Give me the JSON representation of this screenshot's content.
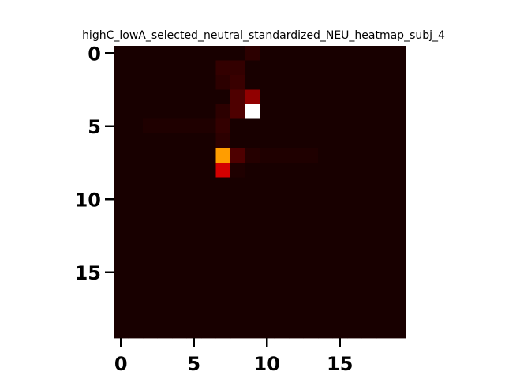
{
  "chart_data": {
    "type": "heatmap",
    "title": "highC_lowA_selected_neutral_standardized_NEU_heatmap_subj_4",
    "xlabel": "",
    "ylabel": "",
    "colormap": "hot",
    "rows": 20,
    "cols": 20,
    "x_ticks": [
      0,
      5,
      10,
      15
    ],
    "y_ticks": [
      0,
      5,
      10,
      15
    ],
    "x_tick_labels": [
      "0",
      "5",
      "10",
      "15"
    ],
    "y_tick_labels": [
      "0",
      "5",
      "10",
      "15"
    ],
    "background_value": 0.02,
    "highlight_cells": [
      {
        "row": 0,
        "col": 9,
        "value": 0.05
      },
      {
        "row": 1,
        "col": 7,
        "value": 0.06
      },
      {
        "row": 1,
        "col": 8,
        "value": 0.06
      },
      {
        "row": 2,
        "col": 7,
        "value": 0.05
      },
      {
        "row": 2,
        "col": 8,
        "value": 0.07
      },
      {
        "row": 3,
        "col": 8,
        "value": 0.1
      },
      {
        "row": 3,
        "col": 9,
        "value": 0.2
      },
      {
        "row": 4,
        "col": 7,
        "value": 0.05
      },
      {
        "row": 4,
        "col": 8,
        "value": 0.1
      },
      {
        "row": 4,
        "col": 9,
        "value": 1.0
      },
      {
        "row": 5,
        "col": 7,
        "value": 0.06
      },
      {
        "row": 5,
        "col": 2,
        "value": 0.03
      },
      {
        "row": 5,
        "col": 3,
        "value": 0.03
      },
      {
        "row": 5,
        "col": 4,
        "value": 0.03
      },
      {
        "row": 5,
        "col": 5,
        "value": 0.03
      },
      {
        "row": 5,
        "col": 6,
        "value": 0.03
      },
      {
        "row": 6,
        "col": 7,
        "value": 0.05
      },
      {
        "row": 7,
        "col": 7,
        "value": 0.6
      },
      {
        "row": 7,
        "col": 8,
        "value": 0.1
      },
      {
        "row": 7,
        "col": 9,
        "value": 0.04
      },
      {
        "row": 7,
        "col": 10,
        "value": 0.03
      },
      {
        "row": 7,
        "col": 11,
        "value": 0.03
      },
      {
        "row": 7,
        "col": 12,
        "value": 0.03
      },
      {
        "row": 7,
        "col": 13,
        "value": 0.03
      },
      {
        "row": 8,
        "col": 7,
        "value": 0.3
      },
      {
        "row": 8,
        "col": 8,
        "value": 0.03
      }
    ],
    "ylim": [
      19.5,
      -0.5
    ],
    "xlim": [
      -0.5,
      19.5
    ],
    "grid": false
  }
}
